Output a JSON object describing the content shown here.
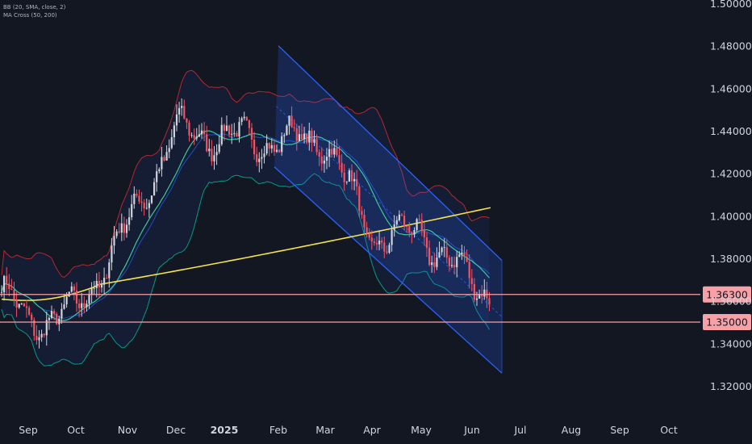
{
  "legend": {
    "bb": "BB (20, SMA, close, 2)",
    "ma": "MA Cross (50, 200)"
  },
  "colors": {
    "background": "#131722",
    "up": "#d1d4dc",
    "down": "#f7525f",
    "bb_band": "#2962ff",
    "bb_upper": "#b22833",
    "bb_lower": "#089981",
    "ma50": "#3cc8a0",
    "ma200": "#f5e44b",
    "channel": "#2962ff",
    "level": "#f7a1a7",
    "tag_bg": "#f7a1a7",
    "tag_text": "#131722"
  },
  "chart_data": {
    "type": "candlestick",
    "title": "",
    "x_axis": [
      "Sep",
      "Oct",
      "Nov",
      "Dec",
      "2025",
      "Feb",
      "Mar",
      "Apr",
      "May",
      "Jun",
      "Jul",
      "Aug",
      "Sep",
      "Oct"
    ],
    "x_axis_bold": [
      "2025"
    ],
    "y_axis": [
      "1.50000",
      "1.48000",
      "1.46000",
      "1.44000",
      "1.42000",
      "1.40000",
      "1.38000",
      "1.36000",
      "1.34000",
      "1.32000"
    ],
    "y_ticks": [
      1.5,
      1.48,
      1.46,
      1.44,
      1.42,
      1.4,
      1.38,
      1.36,
      1.34,
      1.32
    ],
    "ylim": [
      1.31,
      1.5
    ],
    "price_levels": [
      {
        "label": "1.36300",
        "value": 1.363
      },
      {
        "label": "1.35000",
        "value": 1.35
      }
    ],
    "close_path_by_month": [
      {
        "date": "Aug",
        "value": 1.365
      },
      {
        "date": "Sep",
        "value": 1.35
      },
      {
        "date": "Oct",
        "value": 1.355
      },
      {
        "date": "Nov",
        "value": 1.395
      },
      {
        "date": "Dec",
        "value": 1.44
      },
      {
        "date": "2025",
        "value": 1.437
      },
      {
        "date": "Feb",
        "value": 1.435
      },
      {
        "date": "Mar",
        "value": 1.436
      },
      {
        "date": "Apr",
        "value": 1.39
      },
      {
        "date": "May",
        "value": 1.392
      },
      {
        "date": "Jun",
        "value": 1.368
      },
      {
        "date": "Jun end",
        "value": 1.362
      }
    ],
    "channel": {
      "upper_start": {
        "date": "Feb",
        "value": 1.48
      },
      "upper_end": {
        "date": "Jun end",
        "value": 1.379
      },
      "lower_start": {
        "date": "Feb",
        "value": 1.423
      },
      "lower_end": {
        "date": "Jun end",
        "value": 1.326
      }
    },
    "ma200_range": [
      1.36,
      1.404
    ],
    "series": [
      {
        "values": []
      }
    ]
  }
}
